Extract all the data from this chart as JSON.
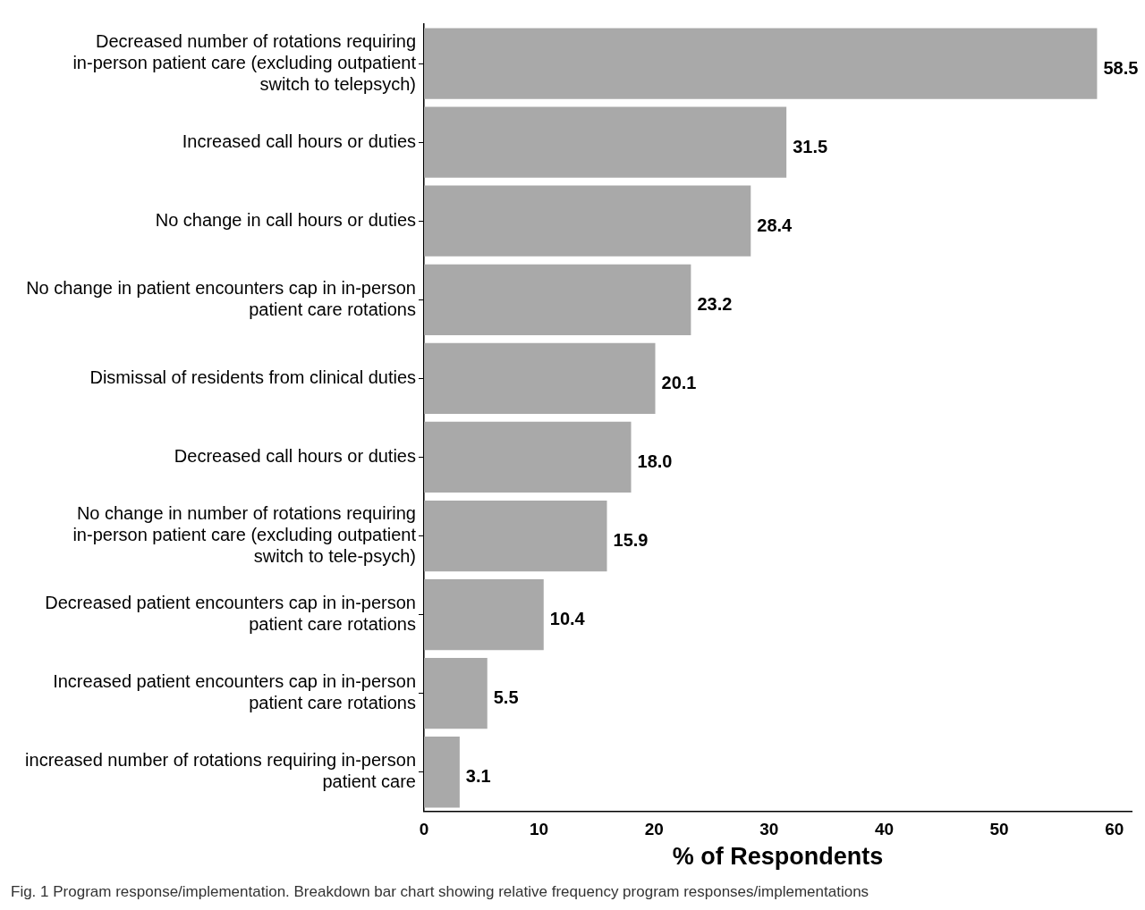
{
  "chart_data": {
    "type": "bar",
    "orientation": "horizontal",
    "categories": [
      "Decreased number of rotations requiring in-person patient care (excluding outpatient switch to telepsych)",
      "Increased call hours or duties",
      "No change in call hours or duties",
      "No change in patient encounters cap in in-person patient care rotations",
      "Dismissal of residents from clinical duties",
      "Decreased call hours or duties",
      "No change in number of rotations requiring in-person patient care (excluding outpatient switch to tele-psych)",
      "Decreased patient encounters cap in in-person patient care rotations",
      "Increased patient encounters cap in in-person patient care rotations",
      "increased number of rotations requiring in-person patient care"
    ],
    "values": [
      58.5,
      31.5,
      28.4,
      23.2,
      20.1,
      18.0,
      15.9,
      10.4,
      5.5,
      3.1
    ],
    "value_labels": [
      "58.5",
      "31.5",
      "28.4",
      "23.2",
      "20.1",
      "18.0",
      "15.9",
      "10.4",
      "5.5",
      "3.1"
    ],
    "color": "#a9a9a9",
    "xlim": [
      0,
      61.5
    ],
    "xticks": [
      0,
      10,
      20,
      30,
      40,
      50,
      60
    ],
    "xlabel": "% of Respondents",
    "grid": false,
    "legend": false,
    "annotations": [
      "Fig. 1 Program response/implementation. Breakdown bar chart showing relative frequency program responses/implementations"
    ]
  }
}
